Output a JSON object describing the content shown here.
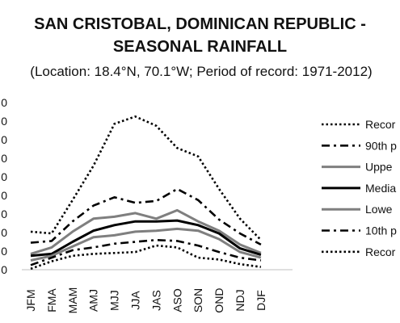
{
  "title_lines": [
    "SAN CRISTOBAL, DOMINICAN REPUBLIC -",
    "SEASONAL RAINFALL"
  ],
  "subtitle": "(Location: 18.4°N, 70.1°W; Period of record: 1971-2012)",
  "chart_data": {
    "type": "line",
    "title": "SAN CRISTOBAL, DOMINICAN REPUBLIC - SEASONAL RAINFALL",
    "subtitle": "(Location: 18.4°N, 70.1°W; Period of record: 1971-2012)",
    "categories": [
      "JFM",
      "FMA",
      "MAM",
      "AMJ",
      "MJJ",
      "JJA",
      "JAS",
      "ASO",
      "SON",
      "OND",
      "NDJ",
      "DJF"
    ],
    "y_tick_labels": [
      "0",
      "0",
      "0",
      "0",
      "0",
      "0",
      "0",
      "0",
      "0",
      "0"
    ],
    "ylim": [
      0,
      9
    ],
    "grid": false,
    "legend_position": "right",
    "series": [
      {
        "name": "Recor",
        "style": "dotted",
        "color": "#000000",
        "values": [
          2.05,
          1.95,
          3.75,
          5.6,
          7.85,
          8.25,
          7.75,
          6.55,
          6.1,
          4.35,
          2.75,
          1.6
        ]
      },
      {
        "name": "90th p",
        "style": "dashdot",
        "color": "#000000",
        "values": [
          1.45,
          1.55,
          2.6,
          3.45,
          3.9,
          3.6,
          3.7,
          4.35,
          3.75,
          2.7,
          1.95,
          1.35
        ]
      },
      {
        "name": "Uppe",
        "style": "solid",
        "color": "#7f7f7f",
        "values": [
          0.85,
          1.2,
          2.05,
          2.75,
          2.85,
          3.05,
          2.75,
          3.2,
          2.6,
          2.1,
          1.35,
          0.9
        ]
      },
      {
        "name": "Media",
        "style": "solid",
        "color": "#000000",
        "values": [
          0.75,
          0.85,
          1.5,
          2.1,
          2.4,
          2.6,
          2.6,
          2.65,
          2.4,
          1.95,
          1.15,
          0.8
        ]
      },
      {
        "name": "Lowe",
        "style": "solid",
        "color": "#7f7f7f",
        "values": [
          0.5,
          0.75,
          1.25,
          1.75,
          1.85,
          2.05,
          2.1,
          2.2,
          2.1,
          1.65,
          0.95,
          0.65
        ]
      },
      {
        "name": "10th p",
        "style": "dashdot",
        "color": "#000000",
        "values": [
          0.25,
          0.65,
          1.05,
          1.2,
          1.4,
          1.5,
          1.6,
          1.55,
          1.3,
          0.95,
          0.65,
          0.5
        ]
      },
      {
        "name": "Recor",
        "style": "dotted",
        "color": "#000000",
        "values": [
          0.05,
          0.45,
          0.75,
          0.85,
          0.9,
          0.95,
          1.3,
          1.2,
          0.65,
          0.55,
          0.3,
          0.15
        ]
      }
    ]
  }
}
